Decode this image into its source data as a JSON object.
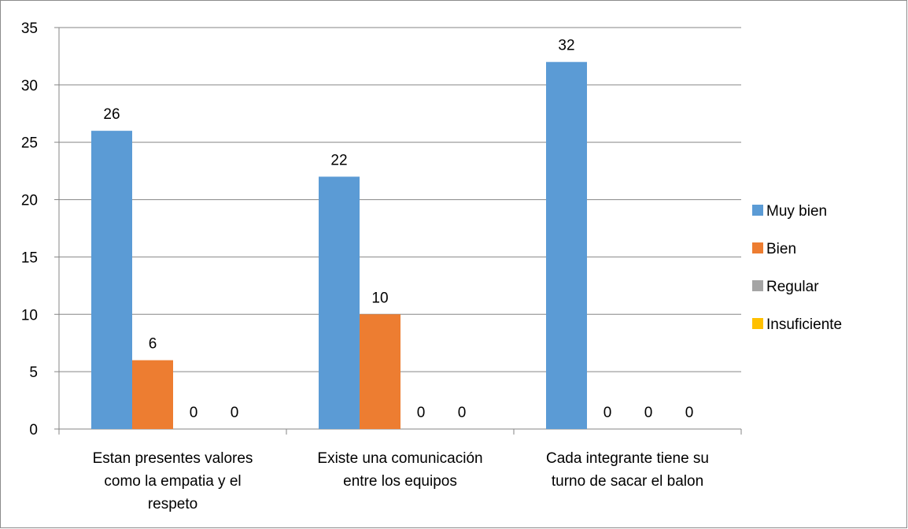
{
  "chart_data": {
    "type": "bar",
    "title": "",
    "xlabel": "",
    "ylabel": "",
    "ylim": [
      0,
      35
    ],
    "yticks": [
      0,
      5,
      10,
      15,
      20,
      25,
      30,
      35
    ],
    "grid": true,
    "legend_position": "right",
    "categories": [
      [
        "Estan presentes valores",
        "como la empatia y el",
        "respeto"
      ],
      [
        "Existe una comunicación",
        "entre los equipos"
      ],
      [
        "Cada integrante tiene su",
        "turno de sacar el balon"
      ]
    ],
    "series": [
      {
        "name": "Muy bien",
        "color": "#5b9bd5",
        "values": [
          26,
          22,
          32
        ]
      },
      {
        "name": "Bien",
        "color": "#ed7d31",
        "values": [
          6,
          10,
          0
        ]
      },
      {
        "name": "Regular",
        "color": "#a5a5a5",
        "values": [
          0,
          0,
          0
        ]
      },
      {
        "name": "Insuficiente",
        "color": "#ffc000",
        "values": [
          0,
          0,
          0
        ]
      }
    ]
  }
}
